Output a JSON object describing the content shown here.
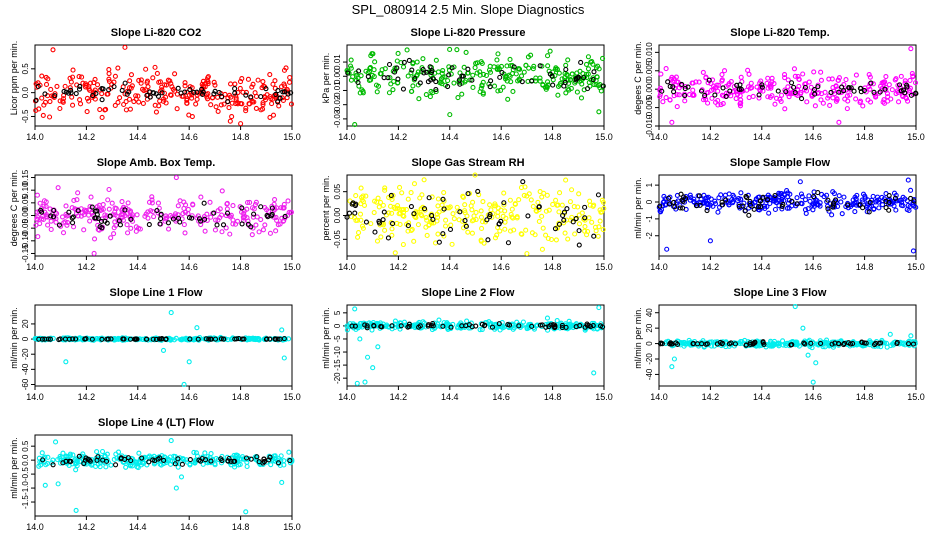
{
  "figure": {
    "title": "SPL_080914  2.5 Min. Slope Diagnostics"
  },
  "chart_data": [
    {
      "type": "scatter",
      "title": "Slope Li-820 CO2",
      "ylabel": "Licor ppm per min.",
      "color": "#ff0000",
      "xlim": [
        14.0,
        15.0
      ],
      "ylim": [
        -0.7,
        1.0
      ],
      "xticks": [
        14.0,
        14.2,
        14.4,
        14.6,
        14.8,
        15.0
      ],
      "xtick_labels": [
        "14.0",
        "14.2",
        "14.4",
        "14.6",
        "14.8",
        "15.0"
      ],
      "yticks": [
        -0.5,
        0.0,
        0.5
      ],
      "ytick_labels": [
        "-0.5",
        "0.0",
        "0.5"
      ],
      "spread": 0.45,
      "black_spread": 0.15,
      "outliers": [
        [
          14.07,
          0.9
        ],
        [
          14.35,
          0.95
        ],
        [
          14.8,
          -0.65
        ],
        [
          14.76,
          -0.6
        ]
      ]
    },
    {
      "type": "scatter",
      "title": "Slope Li-820 Pressure",
      "ylabel": "kPa per min.",
      "color": "#00bb00",
      "xlim": [
        14.0,
        15.0
      ],
      "ylim": [
        -0.035,
        0.022
      ],
      "xticks": [
        14.0,
        14.2,
        14.4,
        14.6,
        14.8,
        15.0
      ],
      "xtick_labels": [
        "14.0",
        "14.2",
        "14.4",
        "14.6",
        "14.8",
        "15.0"
      ],
      "yticks": [
        -0.03,
        -0.02,
        -0.01,
        0.0,
        0.01
      ],
      "ytick_labels": [
        "-0.03",
        "-0.02",
        "-0.01",
        "0.00",
        "0.01"
      ],
      "spread": 0.015,
      "black_spread": 0.01,
      "outliers": [
        [
          14.03,
          -0.034
        ],
        [
          14.4,
          -0.027
        ],
        [
          14.98,
          -0.025
        ]
      ]
    },
    {
      "type": "scatter",
      "title": "Slope Li-820 Temp.",
      "ylabel": "degees C per min.",
      "color": "#ff00ff",
      "xlim": [
        14.0,
        15.0
      ],
      "ylim": [
        -0.01,
        0.012
      ],
      "xticks": [
        14.0,
        14.2,
        14.4,
        14.6,
        14.8,
        15.0
      ],
      "xtick_labels": [
        "14.0",
        "14.2",
        "14.4",
        "14.6",
        "14.8",
        "15.0"
      ],
      "yticks": [
        -0.01,
        -0.005,
        0.0,
        0.005,
        0.01
      ],
      "ytick_labels": [
        "-0.010",
        "-0.005",
        "0.000",
        "0.005",
        "0.010"
      ],
      "spread": 0.0045,
      "black_spread": 0.0025,
      "outliers": [
        [
          14.98,
          0.011
        ],
        [
          14.05,
          -0.009
        ],
        [
          14.7,
          -0.009
        ]
      ]
    },
    {
      "type": "scatter",
      "title": "Slope Amb. Box Temp.",
      "ylabel": "degrees C per min.",
      "color": "#ee22ee",
      "xlim": [
        14.0,
        15.0
      ],
      "ylim": [
        -0.16,
        0.16
      ],
      "xticks": [
        14.0,
        14.2,
        14.4,
        14.6,
        14.8,
        15.0
      ],
      "xtick_labels": [
        "14.0",
        "14.2",
        "14.4",
        "14.6",
        "14.8",
        "15.0"
      ],
      "yticks": [
        -0.15,
        -0.1,
        -0.05,
        0.0,
        0.05,
        0.1,
        0.15
      ],
      "ytick_labels": [
        "-0.15",
        "-0.10",
        "-0.05",
        "0.00",
        "0.05",
        "0.10",
        "0.15"
      ],
      "spread": 0.07,
      "black_spread": 0.04,
      "outliers": [
        [
          14.55,
          0.15
        ],
        [
          14.23,
          -0.15
        ],
        [
          14.09,
          0.11
        ]
      ]
    },
    {
      "type": "scatter",
      "title": "Slope Gas Stream RH",
      "ylabel": "percent per min.",
      "color": "#ffff00",
      "xlim": [
        14.0,
        15.0
      ],
      "ylim": [
        -0.085,
        0.085
      ],
      "xticks": [
        14.0,
        14.2,
        14.4,
        14.6,
        14.8,
        15.0
      ],
      "xtick_labels": [
        "14.0",
        "14.2",
        "14.4",
        "14.6",
        "14.8",
        "15.0"
      ],
      "yticks": [
        -0.05,
        0.0,
        0.05
      ],
      "ytick_labels": [
        "-0.05",
        "0.00",
        "0.05"
      ],
      "spread": 0.06,
      "black_spread": 0.05,
      "outliers": [
        [
          14.3,
          0.075
        ],
        [
          14.7,
          -0.08
        ]
      ]
    },
    {
      "type": "scatter",
      "title": "Slope Sample Flow",
      "ylabel": "ml/min per min.",
      "color": "#0000ff",
      "xlim": [
        14.0,
        15.0
      ],
      "ylim": [
        -3.2,
        1.6
      ],
      "xticks": [
        14.0,
        14.2,
        14.4,
        14.6,
        14.8,
        15.0
      ],
      "xtick_labels": [
        "14.0",
        "14.2",
        "14.4",
        "14.6",
        "14.8",
        "15.0"
      ],
      "yticks": [
        -2,
        -1,
        0,
        1
      ],
      "ytick_labels": [
        "-2",
        "-1",
        "0",
        "1"
      ],
      "spread": 0.6,
      "black_spread": 0.6,
      "outliers": [
        [
          14.03,
          -2.8
        ],
        [
          14.99,
          -2.9
        ],
        [
          14.2,
          -2.3
        ],
        [
          14.55,
          1.2
        ],
        [
          14.97,
          1.3
        ]
      ]
    },
    {
      "type": "scatter",
      "title": "Slope Line 1 Flow",
      "ylabel": "ml/min per min.",
      "color": "#00eeee",
      "xlim": [
        14.0,
        15.0
      ],
      "ylim": [
        -62,
        45
      ],
      "xticks": [
        14.0,
        14.2,
        14.4,
        14.6,
        14.8,
        15.0
      ],
      "xtick_labels": [
        "14.0",
        "14.2",
        "14.4",
        "14.6",
        "14.8",
        "15.0"
      ],
      "yticks": [
        -60,
        -40,
        -20,
        0,
        20
      ],
      "ytick_labels": [
        "-60",
        "-40",
        "-20",
        "0",
        "20"
      ],
      "spread": 1.5,
      "black_spread": 0.6,
      "outliers": [
        [
          14.53,
          35
        ],
        [
          14.6,
          -30
        ],
        [
          14.58,
          -60
        ],
        [
          14.5,
          -15
        ],
        [
          14.12,
          -30
        ],
        [
          14.97,
          -25
        ],
        [
          14.63,
          15
        ],
        [
          14.96,
          12
        ]
      ]
    },
    {
      "type": "scatter",
      "title": "Slope Line 2 Flow",
      "ylabel": "ml/min per min.",
      "color": "#00eeee",
      "xlim": [
        14.0,
        15.0
      ],
      "ylim": [
        -23,
        8
      ],
      "xticks": [
        14.0,
        14.2,
        14.4,
        14.6,
        14.8,
        15.0
      ],
      "xtick_labels": [
        "14.0",
        "14.2",
        "14.4",
        "14.6",
        "14.8",
        "15.0"
      ],
      "yticks": [
        -20,
        -15,
        -10,
        -5,
        0,
        5
      ],
      "ytick_labels": [
        "-20",
        "-15",
        "-10",
        "-5",
        "0",
        "5"
      ],
      "spread": 1.5,
      "black_spread": 0.8,
      "outliers": [
        [
          14.04,
          -22
        ],
        [
          14.07,
          -21.5
        ],
        [
          14.1,
          -16
        ],
        [
          14.08,
          -12
        ],
        [
          14.12,
          -8
        ],
        [
          14.05,
          -5
        ],
        [
          14.98,
          7
        ],
        [
          14.03,
          6.5
        ],
        [
          14.96,
          -18
        ],
        [
          14.78,
          3
        ]
      ]
    },
    {
      "type": "scatter",
      "title": "Slope Line 3 Flow",
      "ylabel": "ml/min per min.",
      "color": "#00eeee",
      "xlim": [
        14.0,
        15.0
      ],
      "ylim": [
        -55,
        50
      ],
      "xticks": [
        14.0,
        14.2,
        14.4,
        14.6,
        14.8,
        15.0
      ],
      "xtick_labels": [
        "14.0",
        "14.2",
        "14.4",
        "14.6",
        "14.8",
        "15.0"
      ],
      "yticks": [
        -40,
        -20,
        0,
        20,
        40
      ],
      "ytick_labels": [
        "-40",
        "-20",
        "0",
        "20",
        "40"
      ],
      "spread": 4,
      "black_spread": 2,
      "outliers": [
        [
          14.53,
          48
        ],
        [
          14.6,
          -50
        ],
        [
          14.05,
          -30
        ],
        [
          14.06,
          -20
        ],
        [
          14.58,
          -15
        ],
        [
          14.56,
          20
        ],
        [
          14.61,
          -25
        ],
        [
          14.9,
          12
        ],
        [
          14.98,
          10
        ]
      ]
    },
    {
      "type": "scatter",
      "title": "Slope Line 4 (LT) Flow",
      "ylabel": "ml/min per min.",
      "color": "#00eeee",
      "xlim": [
        14.0,
        15.0
      ],
      "ylim": [
        -2.0,
        0.9
      ],
      "xticks": [
        14.0,
        14.2,
        14.4,
        14.6,
        14.8,
        15.0
      ],
      "xtick_labels": [
        "14.0",
        "14.2",
        "14.4",
        "14.6",
        "14.8",
        "15.0"
      ],
      "yticks": [
        -1.5,
        -1.0,
        -0.5,
        0.0,
        0.5
      ],
      "ytick_labels": [
        "-1.5",
        "-1.0",
        "-0.5",
        "0.0",
        "0.5"
      ],
      "spread": 0.25,
      "black_spread": 0.15,
      "outliers": [
        [
          14.16,
          -1.8
        ],
        [
          14.82,
          -1.85
        ],
        [
          14.53,
          0.7
        ],
        [
          14.08,
          0.65
        ],
        [
          14.04,
          -0.9
        ],
        [
          14.09,
          -0.85
        ],
        [
          14.96,
          -0.8
        ],
        [
          14.55,
          -1.0
        ],
        [
          14.57,
          -0.6
        ]
      ]
    }
  ]
}
